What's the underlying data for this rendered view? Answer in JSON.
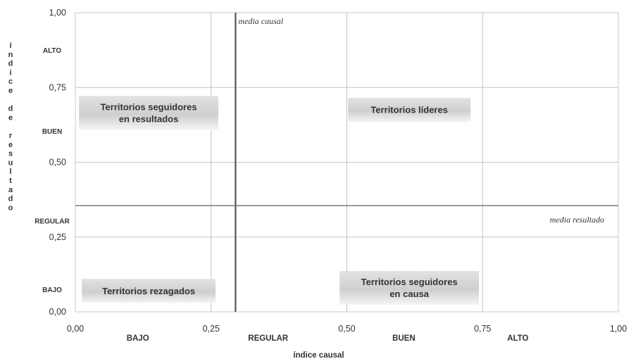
{
  "chart_data": {
    "type": "scatter",
    "xlabel": "índice causal",
    "ylabel": "índice de resultado",
    "xlim": [
      0,
      1
    ],
    "ylim": [
      0,
      1
    ],
    "x_ticks": [
      "0,00",
      "0,25",
      "0,50",
      "0,75",
      "1,00"
    ],
    "y_ticks": [
      "0,00",
      "0,25",
      "0,50",
      "0,75",
      "1,00"
    ],
    "x_bands": [
      {
        "label": "BAJO",
        "center": 0.115
      },
      {
        "label": "REGULAR",
        "center": 0.355
      },
      {
        "label": "BUEN",
        "center": 0.605
      },
      {
        "label": "ALTO",
        "center": 0.815
      }
    ],
    "y_bands": [
      {
        "label": "ALTO",
        "center": 0.875
      },
      {
        "label": "BUEN",
        "center": 0.605
      },
      {
        "label": "REGULAR",
        "center": 0.305
      },
      {
        "label": "BAJO",
        "center": 0.075
      }
    ],
    "grid": true,
    "mean_lines": [
      {
        "label": "media causal",
        "axis": "x",
        "value": 0.295
      },
      {
        "label": "media resultado",
        "axis": "y",
        "value": 0.355
      }
    ],
    "quadrants": [
      {
        "lines": [
          "Territorios seguidores",
          "en resultados"
        ],
        "x": 0.135,
        "y": 0.665
      },
      {
        "lines": [
          "Territorios líderes"
        ],
        "x": 0.615,
        "y": 0.675
      },
      {
        "lines": [
          "Territorios rezagados"
        ],
        "x": 0.135,
        "y": 0.07
      },
      {
        "lines": [
          "Territorios seguidores",
          "en causa"
        ],
        "x": 0.615,
        "y": 0.08
      }
    ]
  }
}
